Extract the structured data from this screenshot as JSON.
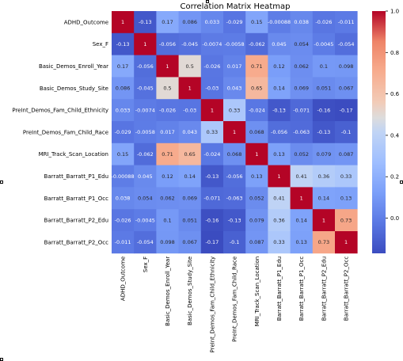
{
  "chart_data": {
    "type": "heatmap",
    "title": "Correlation Matrix Heatmap",
    "labels": [
      "ADHD_Outcome",
      "Sex_F",
      "Basic_Demos_Enroll_Year",
      "Basic_Demos_Study_Site",
      "PreInt_Demos_Fam_Child_Ethnicity",
      "PreInt_Demos_Fam_Child_Race",
      "MRI_Track_Scan_Location",
      "Barratt_Barratt_P1_Edu",
      "Barratt_Barratt_P1_Occ",
      "Barratt_Barratt_P2_Edu",
      "Barratt_Barratt_P2_Occ"
    ],
    "values": [
      [
        1,
        -0.13,
        0.17,
        0.086,
        0.033,
        -0.029,
        0.15,
        -0.00088,
        0.038,
        -0.026,
        -0.011
      ],
      [
        -0.13,
        1,
        -0.056,
        -0.045,
        -0.0074,
        -0.0058,
        -0.062,
        0.045,
        0.054,
        -0.0045,
        -0.054
      ],
      [
        0.17,
        -0.056,
        1,
        0.5,
        -0.026,
        0.017,
        0.71,
        0.12,
        0.062,
        0.1,
        0.098
      ],
      [
        0.086,
        -0.045,
        0.5,
        1,
        -0.03,
        0.043,
        0.65,
        0.14,
        0.069,
        0.051,
        0.067
      ],
      [
        0.033,
        -0.0074,
        -0.026,
        -0.03,
        1,
        0.33,
        -0.024,
        -0.13,
        -0.071,
        -0.16,
        -0.17
      ],
      [
        -0.029,
        -0.0058,
        0.017,
        0.043,
        0.33,
        1,
        0.068,
        -0.056,
        -0.063,
        -0.13,
        -0.1
      ],
      [
        0.15,
        -0.062,
        0.71,
        0.65,
        -0.024,
        0.068,
        1,
        0.13,
        0.052,
        0.079,
        0.087
      ],
      [
        -0.00088,
        0.045,
        0.12,
        0.14,
        -0.13,
        -0.056,
        0.13,
        1,
        0.41,
        0.36,
        0.33
      ],
      [
        0.038,
        0.054,
        0.062,
        0.069,
        -0.071,
        -0.063,
        0.052,
        0.41,
        1,
        0.14,
        0.13
      ],
      [
        -0.026,
        -0.0045,
        0.1,
        0.051,
        -0.16,
        -0.13,
        0.079,
        0.36,
        0.14,
        1,
        0.73
      ],
      [
        -0.011,
        -0.054,
        0.098,
        0.067,
        -0.17,
        -0.1,
        0.087,
        0.33,
        0.13,
        0.73,
        1
      ]
    ],
    "colormap": "coolwarm",
    "colorbar": {
      "range": [
        -0.17,
        1.0
      ],
      "ticks": [
        "1.0",
        "0.8",
        "0.6",
        "0.4",
        "0.2",
        "0.0"
      ],
      "tick_values": [
        1.0,
        0.8,
        0.6,
        0.4,
        0.2,
        0.0
      ]
    }
  }
}
